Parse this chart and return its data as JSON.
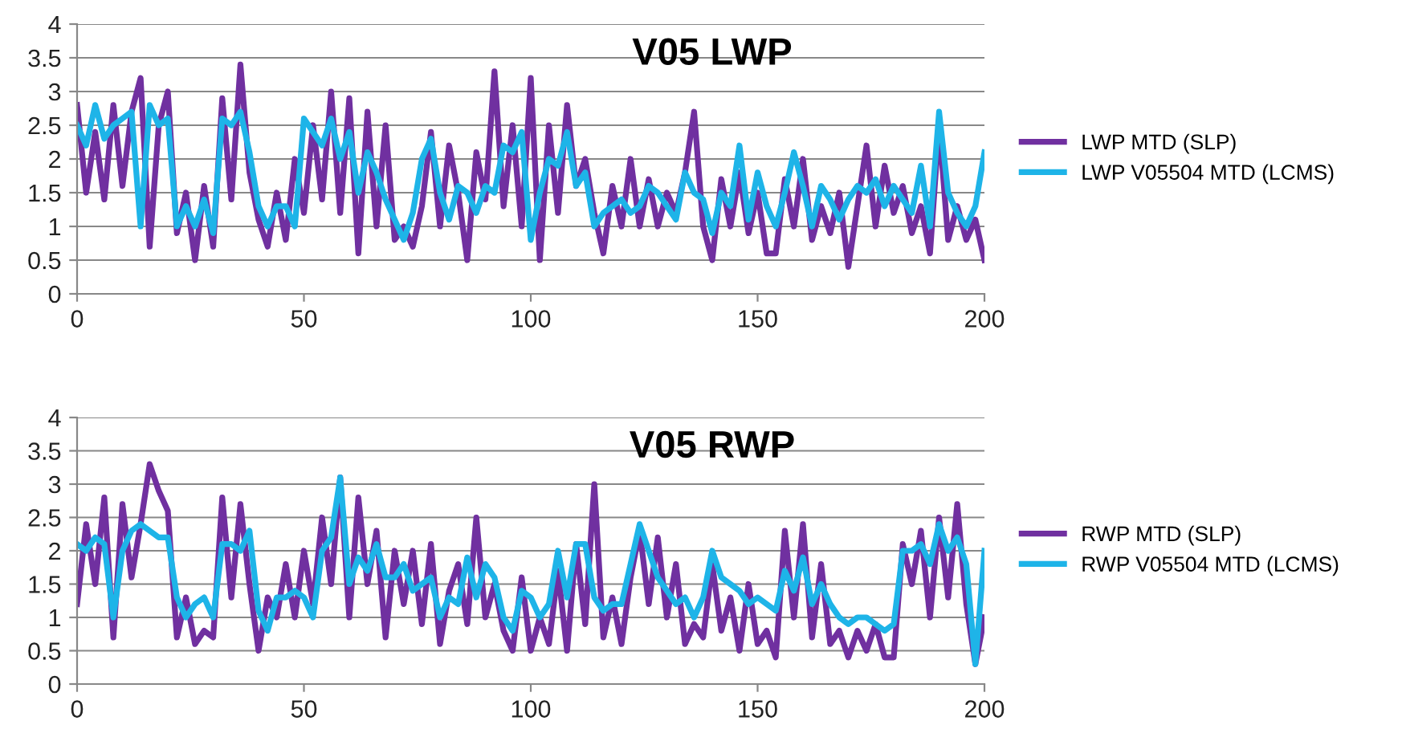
{
  "chart_data": [
    {
      "type": "line",
      "title": "V05 LWP",
      "x": [
        0,
        2,
        4,
        6,
        8,
        10,
        12,
        14,
        16,
        18,
        20,
        22,
        24,
        26,
        28,
        30,
        32,
        34,
        36,
        38,
        40,
        42,
        44,
        46,
        48,
        50,
        52,
        54,
        56,
        58,
        60,
        62,
        64,
        66,
        68,
        70,
        72,
        74,
        76,
        78,
        80,
        82,
        84,
        86,
        88,
        90,
        92,
        94,
        96,
        98,
        100,
        102,
        104,
        106,
        108,
        110,
        112,
        114,
        116,
        118,
        120,
        122,
        124,
        126,
        128,
        130,
        132,
        134,
        136,
        138,
        140,
        142,
        144,
        146,
        148,
        150,
        152,
        154,
        156,
        158,
        160,
        162,
        164,
        166,
        168,
        170,
        172,
        174,
        176,
        178,
        180,
        182,
        184,
        186,
        188,
        190,
        192,
        194,
        196,
        198,
        200
      ],
      "xlim": [
        0,
        200
      ],
      "xticks": [
        0,
        50,
        100,
        150,
        200
      ],
      "ylim": [
        0,
        4
      ],
      "yticks": [
        0,
        0.5,
        1,
        1.5,
        2,
        2.5,
        3,
        3.5,
        4
      ],
      "grid": "y",
      "legend": "right",
      "marker": "none",
      "line_style": "solid",
      "series": [
        {
          "name": "LWP MTD (SLP)",
          "color": "#7030a0",
          "values": [
            2.8,
            1.5,
            2.4,
            1.4,
            2.8,
            1.6,
            2.7,
            3.2,
            0.7,
            2.5,
            3.0,
            0.9,
            1.5,
            0.5,
            1.6,
            0.7,
            2.9,
            1.4,
            3.4,
            1.8,
            1.1,
            0.7,
            1.5,
            0.8,
            2.0,
            1.2,
            2.5,
            1.4,
            3.0,
            1.2,
            2.9,
            0.6,
            2.7,
            1.0,
            2.5,
            0.8,
            1.0,
            0.7,
            1.3,
            2.4,
            1.0,
            2.2,
            1.5,
            0.5,
            2.1,
            1.4,
            3.3,
            1.3,
            2.5,
            1.0,
            3.2,
            0.5,
            2.5,
            1.2,
            2.8,
            1.6,
            2.0,
            1.2,
            0.6,
            1.6,
            1.0,
            2.0,
            1.0,
            1.7,
            1.0,
            1.5,
            1.2,
            1.8,
            2.7,
            1.0,
            0.5,
            1.7,
            1.0,
            1.8,
            0.9,
            1.5,
            0.6,
            0.6,
            1.7,
            1.0,
            2.0,
            0.8,
            1.3,
            0.9,
            1.5,
            0.4,
            1.3,
            2.2,
            1.0,
            1.9,
            1.2,
            1.6,
            0.9,
            1.3,
            0.6,
            2.5,
            0.8,
            1.3,
            0.8,
            1.1,
            0.5
          ]
        },
        {
          "name": "LWP V05504 MTD (LCMS)",
          "color": "#1eb4e8",
          "values": [
            2.5,
            2.2,
            2.8,
            2.3,
            2.5,
            2.6,
            2.7,
            1.0,
            2.8,
            2.5,
            2.6,
            1.0,
            1.3,
            1.0,
            1.4,
            0.9,
            2.6,
            2.5,
            2.7,
            2.1,
            1.3,
            1.0,
            1.3,
            1.3,
            1.0,
            2.6,
            2.4,
            2.2,
            2.6,
            2.0,
            2.4,
            1.5,
            2.1,
            1.8,
            1.4,
            1.1,
            0.8,
            1.2,
            2.0,
            2.3,
            1.5,
            1.1,
            1.6,
            1.5,
            1.2,
            1.6,
            1.5,
            2.2,
            2.1,
            2.4,
            0.8,
            1.5,
            2.0,
            1.9,
            2.4,
            1.6,
            1.8,
            1.0,
            1.2,
            1.3,
            1.4,
            1.2,
            1.3,
            1.6,
            1.5,
            1.3,
            1.1,
            1.8,
            1.5,
            1.4,
            0.9,
            1.5,
            1.3,
            2.2,
            1.1,
            1.8,
            1.3,
            1.0,
            1.5,
            2.1,
            1.6,
            1.0,
            1.6,
            1.4,
            1.1,
            1.4,
            1.6,
            1.5,
            1.7,
            1.3,
            1.6,
            1.4,
            1.2,
            1.9,
            1.0,
            2.7,
            1.5,
            1.2,
            1.0,
            1.3,
            2.1
          ]
        }
      ]
    },
    {
      "type": "line",
      "title": "V05 RWP",
      "x": [
        0,
        2,
        4,
        6,
        8,
        10,
        12,
        14,
        16,
        18,
        20,
        22,
        24,
        26,
        28,
        30,
        32,
        34,
        36,
        38,
        40,
        42,
        44,
        46,
        48,
        50,
        52,
        54,
        56,
        58,
        60,
        62,
        64,
        66,
        68,
        70,
        72,
        74,
        76,
        78,
        80,
        82,
        84,
        86,
        88,
        90,
        92,
        94,
        96,
        98,
        100,
        102,
        104,
        106,
        108,
        110,
        112,
        114,
        116,
        118,
        120,
        122,
        124,
        126,
        128,
        130,
        132,
        134,
        136,
        138,
        140,
        142,
        144,
        146,
        148,
        150,
        152,
        154,
        156,
        158,
        160,
        162,
        164,
        166,
        168,
        170,
        172,
        174,
        176,
        178,
        180,
        182,
        184,
        186,
        188,
        190,
        192,
        194,
        196,
        198,
        200
      ],
      "xlim": [
        0,
        200
      ],
      "xticks": [
        0,
        50,
        100,
        150,
        200
      ],
      "ylim": [
        0,
        4
      ],
      "yticks": [
        0,
        0.5,
        1,
        1.5,
        2,
        2.5,
        3,
        3.5,
        4
      ],
      "grid": "y",
      "legend": "right",
      "marker": "none",
      "line_style": "solid",
      "series": [
        {
          "name": "RWP MTD (SLP)",
          "color": "#7030a0",
          "values": [
            1.2,
            2.4,
            1.5,
            2.8,
            0.7,
            2.7,
            1.6,
            2.4,
            3.3,
            2.9,
            2.6,
            0.7,
            1.3,
            0.6,
            0.8,
            0.7,
            2.8,
            1.3,
            2.7,
            1.5,
            0.5,
            1.3,
            1.0,
            1.8,
            1.0,
            2.0,
            1.2,
            2.5,
            1.5,
            3.1,
            1.0,
            2.8,
            1.5,
            2.3,
            0.7,
            2.0,
            1.2,
            2.0,
            0.9,
            2.1,
            0.6,
            1.4,
            1.8,
            0.9,
            2.5,
            1.0,
            1.5,
            0.8,
            0.5,
            1.6,
            0.5,
            1.0,
            0.6,
            1.7,
            0.5,
            2.1,
            0.9,
            3.0,
            0.7,
            1.3,
            0.6,
            1.6,
            2.3,
            1.2,
            2.2,
            1.0,
            1.8,
            0.6,
            0.9,
            0.7,
            1.8,
            0.8,
            1.3,
            0.5,
            1.5,
            0.6,
            0.8,
            0.4,
            2.3,
            1.0,
            2.4,
            0.7,
            1.8,
            0.6,
            0.8,
            0.4,
            0.8,
            0.5,
            0.9,
            0.4,
            0.4,
            2.1,
            1.5,
            2.3,
            1.0,
            2.5,
            1.3,
            2.7,
            1.2,
            0.3,
            1.0
          ]
        },
        {
          "name": "RWP V05504 MTD (LCMS)",
          "color": "#1eb4e8",
          "values": [
            2.1,
            2.0,
            2.2,
            2.1,
            1.0,
            2.0,
            2.3,
            2.4,
            2.3,
            2.2,
            2.2,
            1.3,
            1.0,
            1.2,
            1.3,
            1.0,
            2.1,
            2.1,
            2.0,
            2.3,
            1.1,
            0.8,
            1.3,
            1.3,
            1.4,
            1.3,
            1.0,
            2.0,
            2.2,
            3.1,
            1.5,
            1.9,
            1.7,
            2.1,
            1.6,
            1.6,
            1.8,
            1.4,
            1.5,
            1.6,
            1.0,
            1.3,
            1.2,
            1.9,
            1.3,
            1.8,
            1.6,
            1.0,
            0.8,
            1.4,
            1.3,
            1.0,
            1.2,
            2.0,
            1.3,
            2.1,
            2.1,
            1.3,
            1.1,
            1.2,
            1.2,
            1.8,
            2.4,
            2.0,
            1.6,
            1.4,
            1.2,
            1.3,
            1.0,
            1.3,
            2.0,
            1.6,
            1.5,
            1.4,
            1.2,
            1.3,
            1.2,
            1.1,
            1.7,
            1.4,
            1.9,
            1.2,
            1.5,
            1.2,
            1.0,
            0.9,
            1.0,
            1.0,
            0.9,
            0.8,
            0.9,
            2.0,
            2.0,
            2.1,
            1.8,
            2.4,
            2.0,
            2.2,
            1.8,
            0.3,
            2.0
          ]
        }
      ]
    }
  ]
}
